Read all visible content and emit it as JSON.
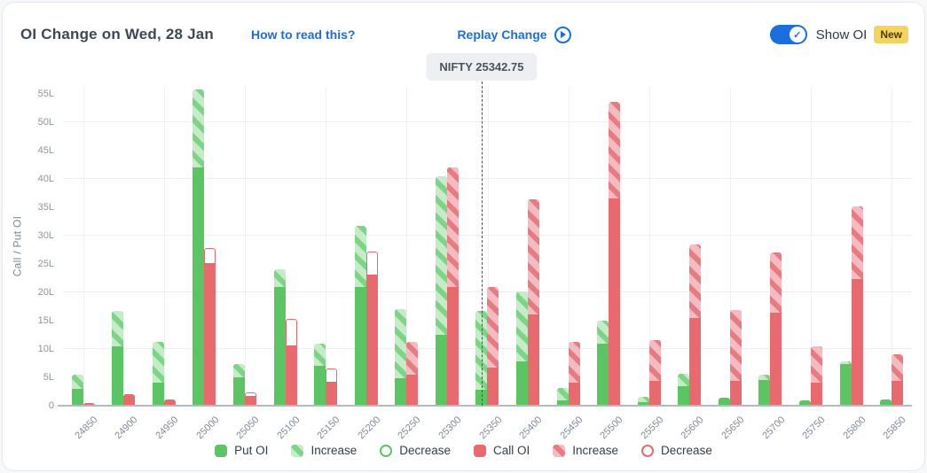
{
  "header": {
    "title": "OI Change on Wed, 28 Jan",
    "how_to_link": "How to read this?",
    "replay_link": "Replay Change",
    "show_oi_label": "Show OI",
    "new_badge": "New",
    "show_oi_on": true
  },
  "nifty_marker": {
    "label": "NIFTY 25342.75",
    "value": 25342.75
  },
  "colors": {
    "put_solid": "#5bc463",
    "put_hatch_bg": "#c5ebc8",
    "put_hatch_stripe": "#7bd584",
    "call_solid": "#e96a6e",
    "call_hatch_bg": "#f4bcc0",
    "call_hatch_stripe": "#e87a82",
    "accent_blue": "#1a6ee0",
    "badge_yellow": "#f6d35f",
    "grid": "#eceef3",
    "axis_text": "#8b95a2"
  },
  "chart_data": {
    "type": "bar",
    "title": "OI Change on Wed, 28 Jan",
    "xlabel": "",
    "ylabel": "Call / Put OI",
    "y_unit": "lakh (L)",
    "ylim": [
      0,
      56.25
    ],
    "y_ticks": [
      "0",
      "5L",
      "10L",
      "15L",
      "20L",
      "25L",
      "30L",
      "35L",
      "40L",
      "45L",
      "50L",
      "55L"
    ],
    "grid": true,
    "legend_position": "bottom",
    "categories": [
      "24850",
      "24900",
      "24950",
      "25000",
      "25050",
      "25100",
      "25150",
      "25200",
      "25250",
      "25300",
      "25350",
      "25400",
      "25450",
      "25500",
      "25550",
      "25600",
      "25650",
      "25700",
      "25750",
      "25800",
      "25850"
    ],
    "series": [
      {
        "name": "Put OI (solid)",
        "values": [
          3.0,
          10.5,
          4.0,
          42.0,
          5.0,
          21.0,
          7.0,
          21.0,
          4.8,
          12.5,
          2.8,
          7.8,
          1.0,
          11.0,
          0.6,
          3.5,
          1.4,
          4.6,
          0.9,
          7.4,
          1.1
        ]
      },
      {
        "name": "Put OI Increase",
        "values": [
          2.5,
          6.3,
          7.2,
          13.8,
          2.4,
          3.0,
          4.0,
          10.8,
          12.2,
          28.0,
          13.9,
          12.4,
          2.2,
          4.0,
          0.9,
          2.1,
          0,
          0.8,
          0,
          0.4,
          0
        ]
      },
      {
        "name": "Put OI Decrease",
        "values": [
          0,
          0,
          0,
          0,
          0,
          0,
          0,
          0,
          0,
          0,
          0,
          0,
          0,
          0,
          0,
          0,
          0,
          0,
          0,
          0,
          0
        ]
      },
      {
        "name": "Call OI (solid)",
        "values": [
          0.4,
          2.0,
          1.1,
          25.0,
          1.6,
          10.5,
          4.1,
          23.0,
          5.5,
          21.0,
          6.7,
          16.1,
          4.0,
          36.6,
          4.3,
          15.4,
          4.4,
          16.4,
          4.1,
          22.3,
          4.4
        ]
      },
      {
        "name": "Call OI Increase",
        "values": [
          0,
          0,
          0,
          0,
          0,
          0,
          0,
          0,
          5.7,
          21.0,
          14.3,
          20.3,
          7.3,
          17.0,
          7.3,
          13.0,
          12.4,
          10.7,
          6.3,
          12.9,
          4.6
        ]
      },
      {
        "name": "Call OI Decrease",
        "values": [
          0,
          0,
          0,
          2.8,
          0.8,
          4.8,
          2.4,
          4.2,
          0,
          0,
          0,
          0,
          0,
          0,
          0,
          0,
          0,
          0,
          0,
          0,
          0
        ]
      }
    ],
    "spot": {
      "label": "NIFTY 25342.75",
      "value": 25342.75
    }
  },
  "legend": {
    "items": [
      {
        "label": "Put OI",
        "swatch": "put-solid"
      },
      {
        "label": "Increase",
        "swatch": "put-inc"
      },
      {
        "label": "Decrease",
        "swatch": "put-dec"
      },
      {
        "label": "Call OI",
        "swatch": "call-solid"
      },
      {
        "label": "Increase",
        "swatch": "call-inc"
      },
      {
        "label": "Decrease",
        "swatch": "call-dec"
      }
    ]
  }
}
